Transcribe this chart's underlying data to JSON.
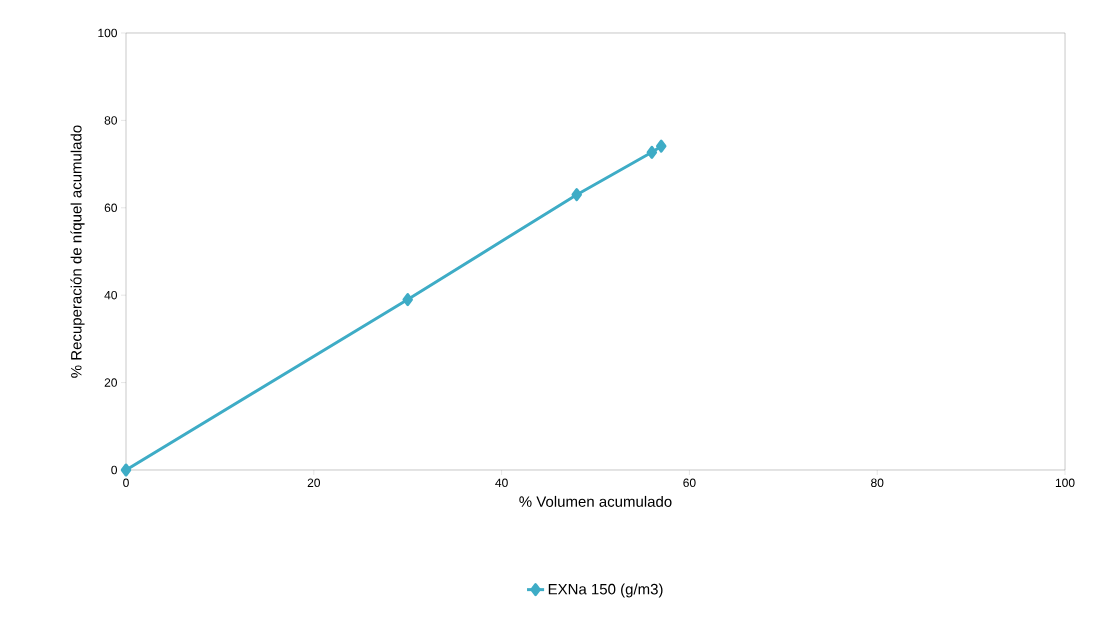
{
  "chart_data": {
    "type": "line",
    "xlabel": "% Volumen acumulado",
    "ylabel": "% Recuperación de níquel acumulado",
    "xlim": [
      0,
      100
    ],
    "xticks": [
      0,
      20,
      40,
      60,
      80,
      100
    ],
    "ylim": [
      0,
      100
    ],
    "yticks": [
      0,
      20,
      40,
      60,
      80,
      100
    ],
    "grid": false,
    "legend": "bottom",
    "marker": "diamond",
    "line_style": "solid",
    "series": [
      {
        "name": "EXNa 150 (g/m3)",
        "color": "#3eacc6",
        "x": [
          0,
          30,
          48,
          56,
          57
        ],
        "values": [
          0,
          39,
          63,
          72.7,
          74.1
        ]
      }
    ]
  }
}
